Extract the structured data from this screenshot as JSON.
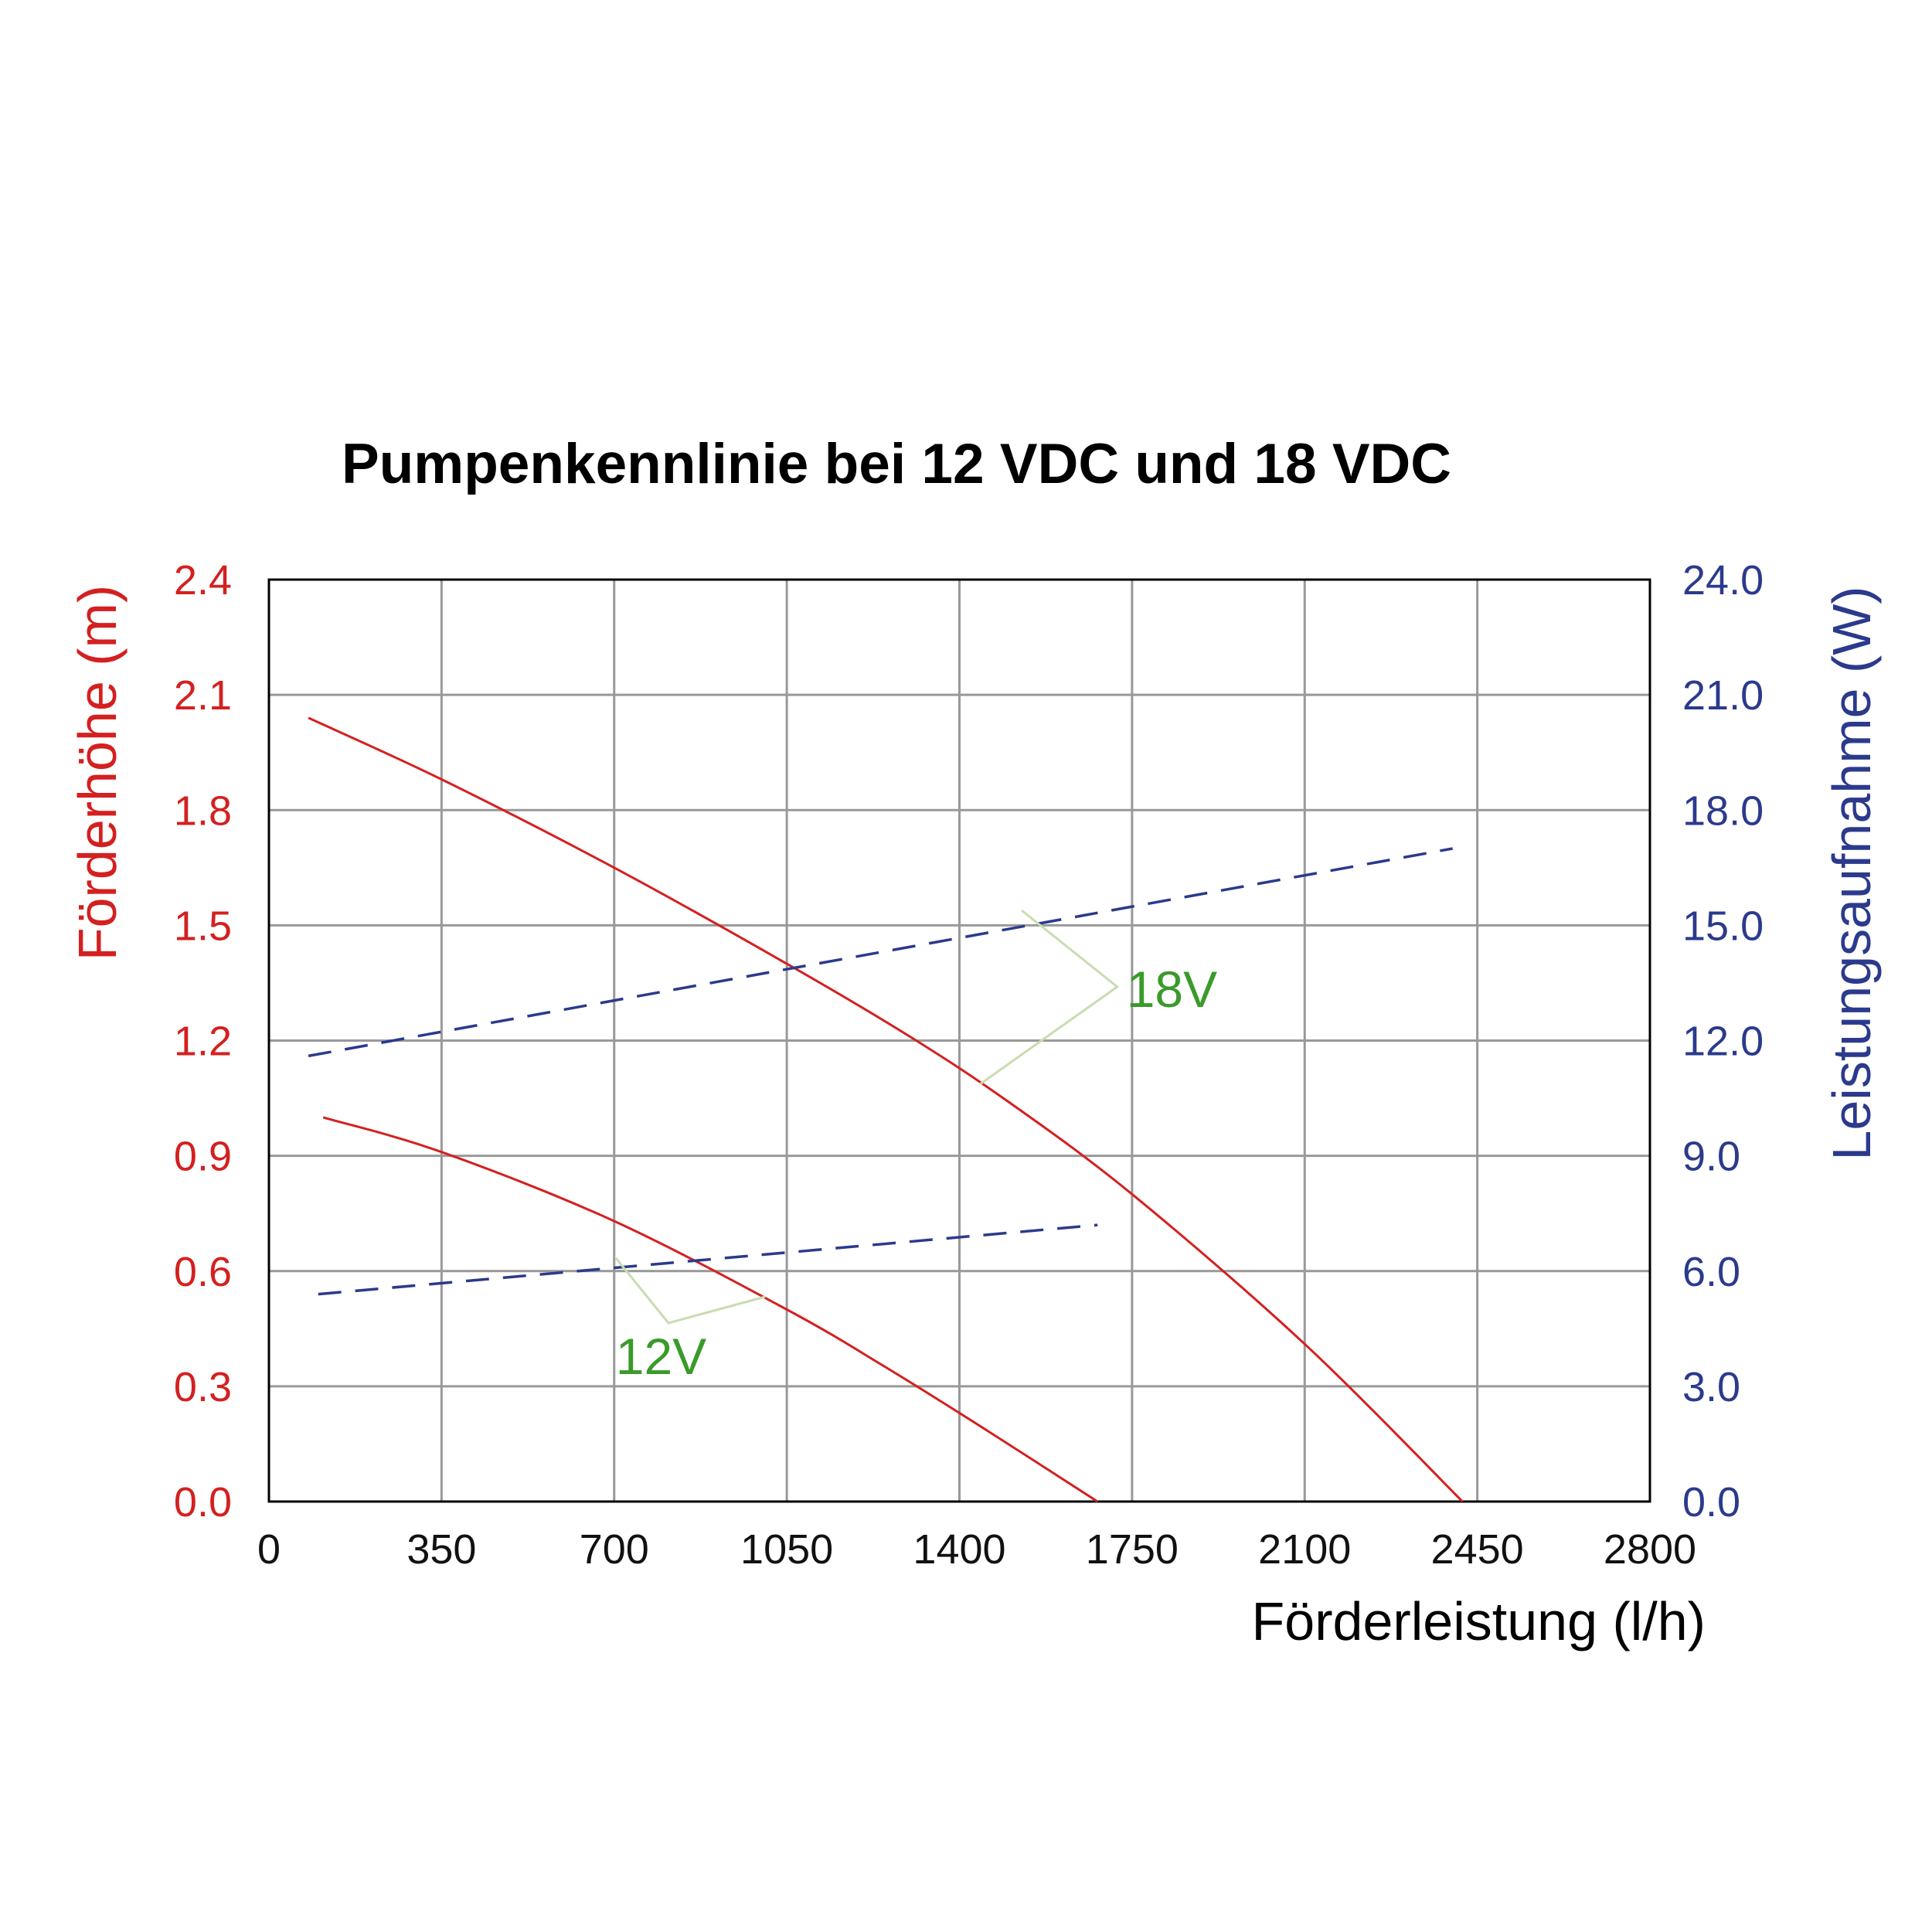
{
  "chart_data": {
    "type": "line",
    "title": "Pumpenkennlinie bei 12 VDC und 18 VDC",
    "xlabel": "Förderleistung (l/h)",
    "ylabel_left": "Förderhöhe (m)",
    "ylabel_right": "Leistungsaufnahme (W)",
    "xlim": [
      0,
      2800
    ],
    "ylim_left": [
      0,
      2.4
    ],
    "ylim_right": [
      0,
      24
    ],
    "x_ticks": [
      "0",
      "350",
      "700",
      "1050",
      "1400",
      "1750",
      "2100",
      "2450",
      "2800"
    ],
    "y_left_ticks": [
      "0.0",
      "0.3",
      "0.6",
      "0.9",
      "1.2",
      "1.5",
      "1.8",
      "2.1",
      "2.4"
    ],
    "y_right_ticks": [
      "0.0",
      "3.0",
      "6.0",
      "9.0",
      "12.0",
      "15.0",
      "18.0",
      "21.0",
      "24.0"
    ],
    "grid": true,
    "colors": {
      "head": "#d42020",
      "power": "#2b3a8c",
      "annotation_text": "#3a9a2a",
      "annotation_line": "#c8ddb0",
      "grid": "#999999",
      "axis": "#000000"
    },
    "series": [
      {
        "axis": "left",
        "style": "solid",
        "x": [
          80,
          350,
          700,
          1050,
          1300,
          1500,
          1750,
          2100,
          2420
        ],
        "y": [
          2.04,
          1.88,
          1.65,
          1.4,
          1.21,
          1.04,
          0.8,
          0.41,
          0.0
        ]
      },
      {
        "axis": "left",
        "style": "solid",
        "x": [
          110,
          350,
          700,
          1050,
          1250,
          1450,
          1680
        ],
        "y": [
          1.0,
          0.91,
          0.73,
          0.5,
          0.35,
          0.19,
          0.0
        ]
      },
      {
        "axis": "right",
        "style": "dashed",
        "x": [
          80,
          2400
        ],
        "y": [
          11.6,
          17.0
        ]
      },
      {
        "axis": "right",
        "style": "dashed",
        "x": [
          100,
          1680
        ],
        "y": [
          5.4,
          7.2
        ]
      }
    ],
    "annotations": [
      {
        "text": "18V",
        "x": 1720,
        "y_left": 1.34
      },
      {
        "text": "12V",
        "x": 700,
        "y_left": 0.38
      }
    ]
  }
}
